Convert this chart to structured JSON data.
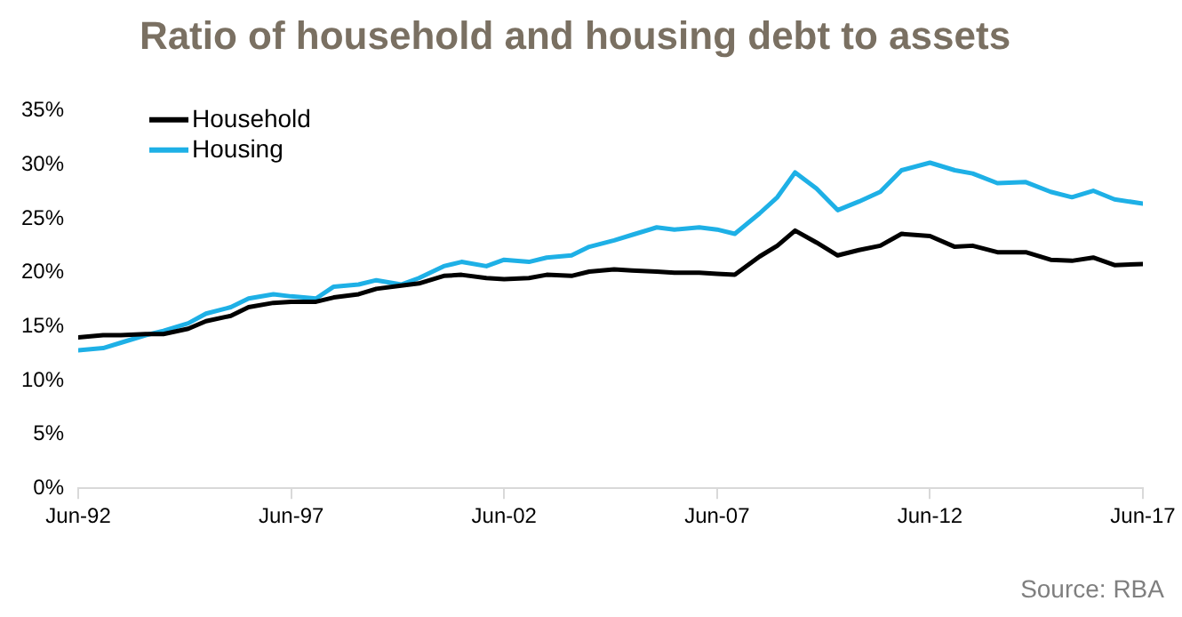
{
  "chart_data": {
    "type": "line",
    "title": "Ratio of household and housing debt to assets",
    "x": [
      "1992-06",
      "1993-01",
      "1993-06",
      "1994-01",
      "1994-06",
      "1995-01",
      "1995-06",
      "1996-01",
      "1996-06",
      "1997-01",
      "1997-06",
      "1998-01",
      "1998-06",
      "1999-01",
      "1999-06",
      "2000-01",
      "2000-06",
      "2001-01",
      "2001-06",
      "2002-01",
      "2002-06",
      "2003-01",
      "2003-06",
      "2004-01",
      "2004-06",
      "2005-01",
      "2005-06",
      "2006-01",
      "2006-06",
      "2007-01",
      "2007-06",
      "2007-11",
      "2008-06",
      "2008-11",
      "2009-04",
      "2009-10",
      "2010-04",
      "2010-10",
      "2011-04",
      "2011-10",
      "2012-06",
      "2013-01",
      "2013-06",
      "2014-01",
      "2014-09",
      "2015-04",
      "2015-10",
      "2016-04",
      "2016-10",
      "2017-06"
    ],
    "series": [
      {
        "name": "Household",
        "color": "#000000",
        "values": [
          14.0,
          14.2,
          14.2,
          14.3,
          14.3,
          14.8,
          15.5,
          16.0,
          16.8,
          17.2,
          17.3,
          17.3,
          17.7,
          18.0,
          18.5,
          18.8,
          19.0,
          19.7,
          19.8,
          19.5,
          19.4,
          19.5,
          19.8,
          19.7,
          20.1,
          20.3,
          20.2,
          20.1,
          20.0,
          20.0,
          19.9,
          19.8,
          21.5,
          22.5,
          23.9,
          22.8,
          21.6,
          22.1,
          22.5,
          23.6,
          23.4,
          22.4,
          22.5,
          21.9,
          21.9,
          21.2,
          21.1,
          21.4,
          20.7,
          20.8
        ]
      },
      {
        "name": "Housing",
        "color": "#1eb0e6",
        "values": [
          12.8,
          13.0,
          13.5,
          14.2,
          14.6,
          15.3,
          16.2,
          16.8,
          17.6,
          18.0,
          17.8,
          17.6,
          18.7,
          18.9,
          19.3,
          18.9,
          19.5,
          20.6,
          21.0,
          20.6,
          21.2,
          21.0,
          21.4,
          21.6,
          22.4,
          23.0,
          23.5,
          24.2,
          24.0,
          24.2,
          24.0,
          23.6,
          25.5,
          27.0,
          29.3,
          27.8,
          25.8,
          26.6,
          27.5,
          29.5,
          30.2,
          29.5,
          29.2,
          28.3,
          28.4,
          27.5,
          27.0,
          27.6,
          26.8,
          26.4
        ]
      }
    ],
    "xlim": [
      "1992-06",
      "2017-06"
    ],
    "xticks": [
      {
        "value": "1992-06",
        "label": "Jun-92"
      },
      {
        "value": "1997-06",
        "label": "Jun-97"
      },
      {
        "value": "2002-06",
        "label": "Jun-02"
      },
      {
        "value": "2007-06",
        "label": "Jun-07"
      },
      {
        "value": "2012-06",
        "label": "Jun-12"
      },
      {
        "value": "2017-06",
        "label": "Jun-17"
      }
    ],
    "ylim": [
      0,
      35
    ],
    "yticks": [
      {
        "value": 0,
        "label": "0%"
      },
      {
        "value": 5,
        "label": "5%"
      },
      {
        "value": 10,
        "label": "10%"
      },
      {
        "value": 15,
        "label": "15%"
      },
      {
        "value": 20,
        "label": "20%"
      },
      {
        "value": 25,
        "label": "25%"
      },
      {
        "value": 30,
        "label": "30%"
      },
      {
        "value": 35,
        "label": "35%"
      }
    ],
    "grid": false,
    "legend": "top left",
    "marker": "none",
    "line_style": "solid",
    "annotations": [
      "Source: RBA"
    ]
  }
}
